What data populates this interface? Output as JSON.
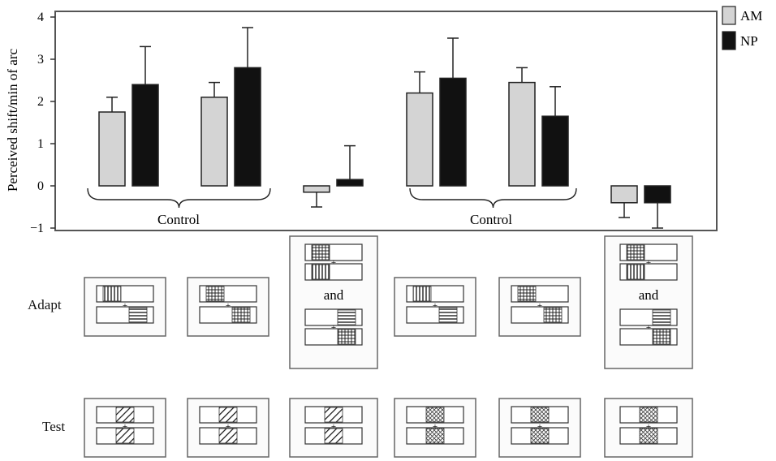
{
  "chart_data": {
    "type": "bar",
    "ylabel": "Perceived shift/min of arc",
    "ylim": [
      -1,
      4
    ],
    "yticks": [
      "4",
      "3",
      "2",
      "1",
      "0",
      "−1"
    ],
    "series": [
      {
        "name": "AM",
        "color": "#d4d4d4",
        "values": [
          1.75,
          2.1,
          -0.15,
          2.2,
          2.45,
          -0.4
        ],
        "errors": [
          0.35,
          0.35,
          0.35,
          0.5,
          0.35,
          0.35
        ]
      },
      {
        "name": "NP",
        "color": "#111111",
        "values": [
          2.4,
          2.8,
          0.15,
          2.55,
          1.65,
          -0.4
        ],
        "errors": [
          0.9,
          0.95,
          0.8,
          0.95,
          0.7,
          0.6
        ]
      }
    ],
    "group_labels": [
      "Control",
      "Control"
    ]
  },
  "rows": {
    "adapt": "Adapt",
    "test": "Test"
  },
  "connector": "and",
  "colors": {
    "am": "#d4d4d4",
    "np": "#111111",
    "frame": "#555555"
  }
}
